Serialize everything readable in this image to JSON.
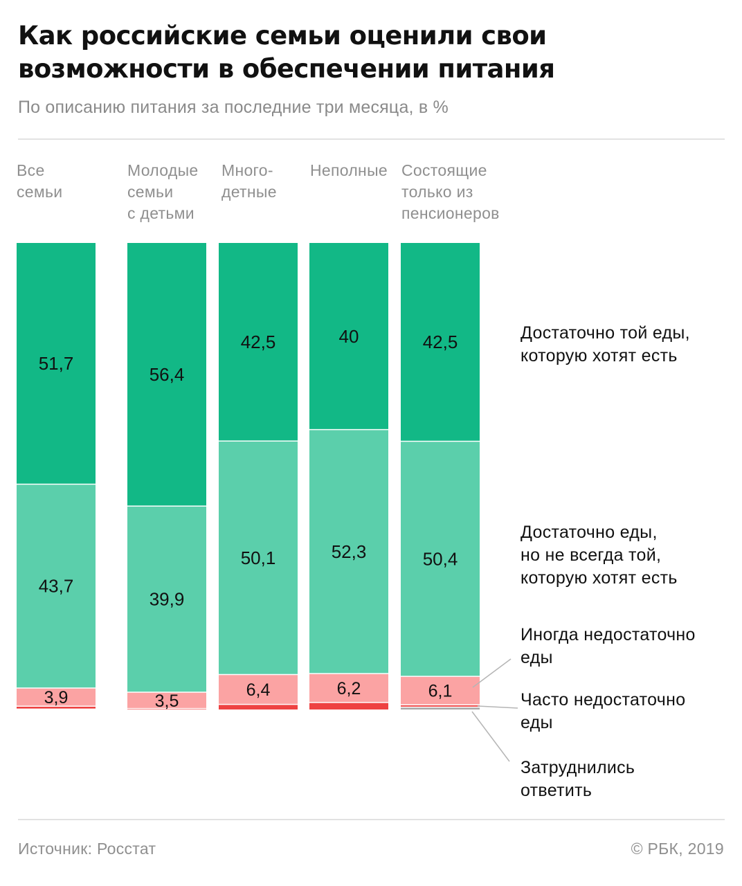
{
  "header": {
    "title_lines": [
      "Как российские семьи оценили свои",
      "возможности в обеспечении питания"
    ],
    "subtitle": "По описанию питания за последние три месяца, в %"
  },
  "footer": {
    "source": "Источник: Росстат",
    "copyright": "© РБК, 2019"
  },
  "colors": {
    "enough_wanted": "#12b886",
    "enough_not_always": "#5bcfab",
    "sometimes_not_enough": "#fba3a3",
    "often_not_enough": "#ee4242",
    "hard_to_answer": "#a8a8a8"
  },
  "chart_data": {
    "type": "bar",
    "stacked": true,
    "orientation": "vertical",
    "categories": [
      [
        "Все",
        "семьи"
      ],
      [
        "Молодые",
        "семьи",
        "с детьми"
      ],
      [
        "Много-",
        "детные"
      ],
      [
        "Неполные"
      ],
      [
        "Состоящие",
        "только из",
        "пенсионеров"
      ]
    ],
    "series": [
      {
        "name": [
          "Достаточно той еды,",
          "которую хотят есть"
        ],
        "values": [
          51.7,
          56.4,
          42.5,
          40,
          42.5
        ],
        "labels": [
          "51,7",
          "56,4",
          "42,5",
          "40",
          "42,5"
        ]
      },
      {
        "name": [
          "Достаточно еды,",
          "но не всегда той,",
          "которую хотят есть"
        ],
        "values": [
          43.7,
          39.9,
          50.1,
          52.3,
          50.4
        ],
        "labels": [
          "43,7",
          "39,9",
          "50,1",
          "52,3",
          "50,4"
        ]
      },
      {
        "name": [
          "Иногда недостаточно",
          "еды"
        ],
        "values": [
          3.9,
          3.5,
          6.4,
          6.2,
          6.1
        ],
        "labels": [
          "3,9",
          "3,5",
          "6,4",
          "6,2",
          "6,1"
        ]
      },
      {
        "name": [
          "Часто недостаточно",
          "еды"
        ],
        "values": [
          0.6,
          0.2,
          1.1,
          1.5,
          0.5
        ],
        "labels": [
          "",
          "",
          "",
          "",
          ""
        ]
      },
      {
        "name": [
          "Затруднились",
          "ответить"
        ],
        "values": [
          0.1,
          0.0,
          0.0,
          0.0,
          0.5
        ],
        "labels": [
          "",
          "",
          "",
          "",
          ""
        ]
      }
    ],
    "ylim": [
      0,
      100
    ],
    "grid": false,
    "legend_placement": "right"
  }
}
